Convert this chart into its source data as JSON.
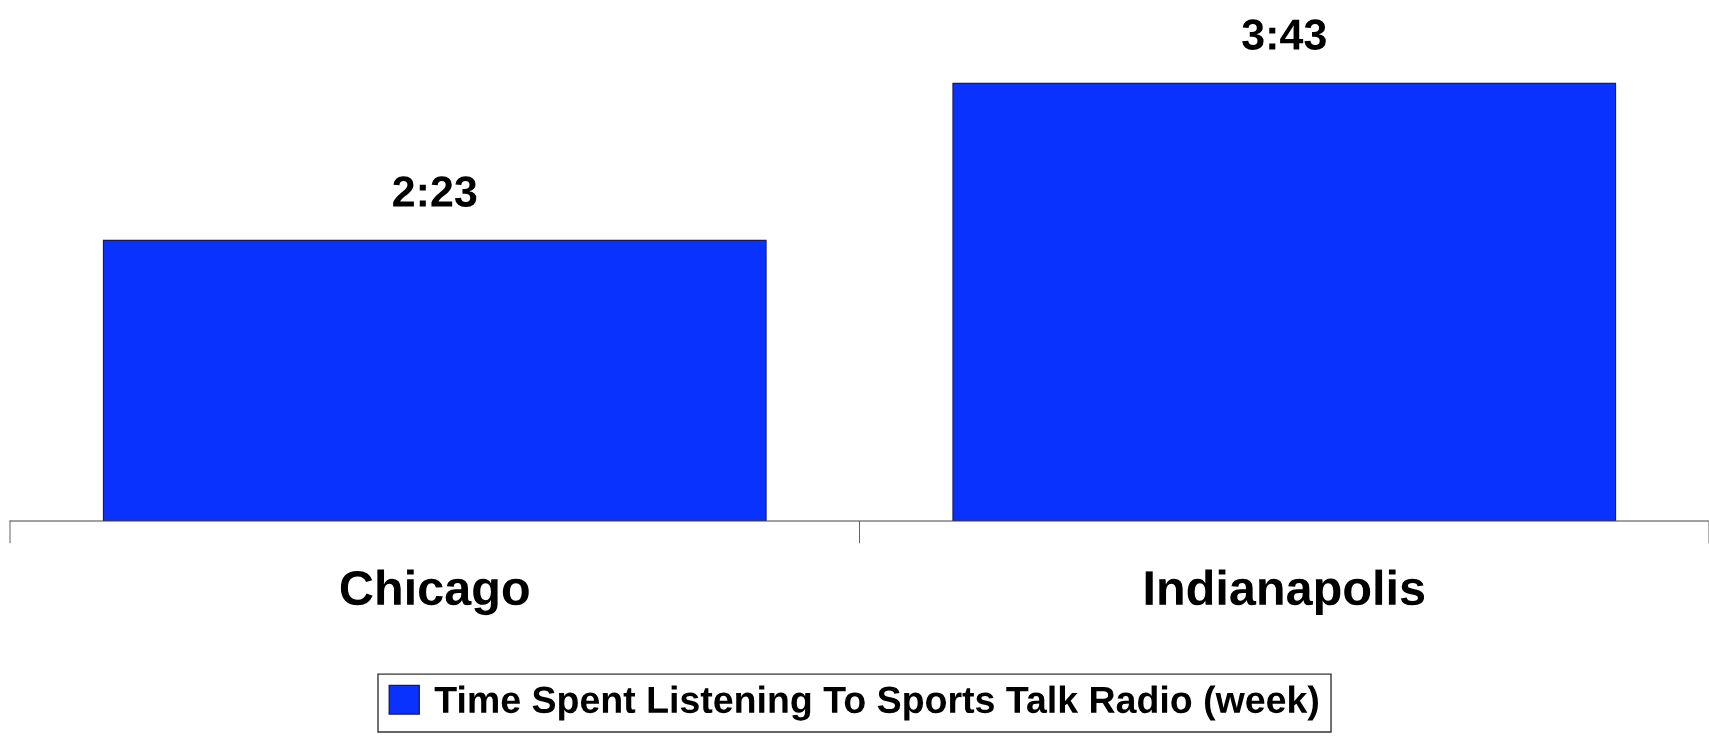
{
  "chart_data": {
    "type": "bar",
    "categories": [
      "Chicago",
      "Indianapolis"
    ],
    "series": [
      {
        "name": "Time Spent Listening To Sports Talk Radio (week)",
        "color": "#0a32ff",
        "values": [
          2.3833,
          3.7167
        ],
        "value_labels": [
          "2:23",
          "3:43"
        ]
      }
    ],
    "legend": "bottom",
    "grid": false
  }
}
